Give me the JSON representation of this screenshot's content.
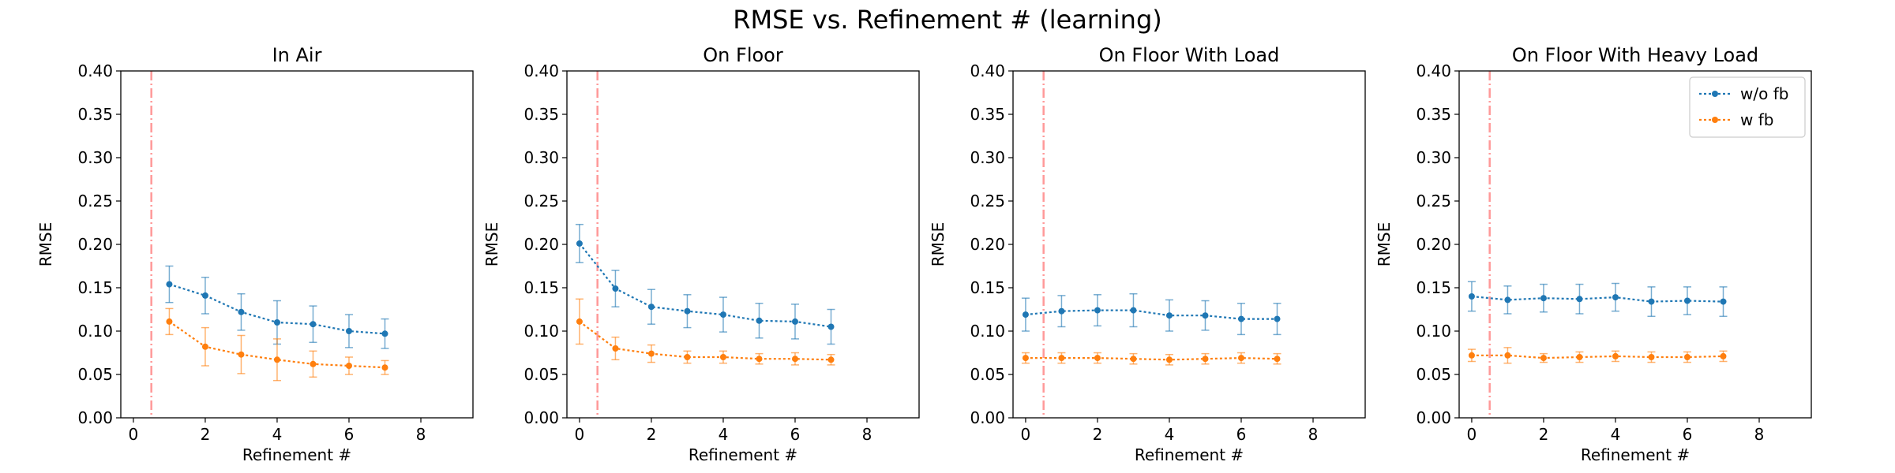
{
  "figure": {
    "title": "RMSE vs. Refinement # (learning)"
  },
  "colors": {
    "series_without_feedback": "#1f77b4",
    "series_with_feedback": "#ff7f0e",
    "marker_line": "#ff9999",
    "axes": "#000000"
  },
  "legend": {
    "placement": "upper right of last panel",
    "entries": [
      "w/o fb",
      "w fb"
    ]
  },
  "chart_data": [
    {
      "type": "line",
      "title": "In Air",
      "xlabel": "Refinement #",
      "ylabel": "RMSE",
      "xlim": [
        -0.35,
        9.45
      ],
      "ylim": [
        0,
        0.4
      ],
      "xticks": [
        "0",
        "2",
        "4",
        "6",
        "8"
      ],
      "yticks": [
        "0.00",
        "0.05",
        "0.10",
        "0.15",
        "0.20",
        "0.25",
        "0.30",
        "0.35",
        "0.40"
      ],
      "vline_x": 0.5,
      "grid": false,
      "series": [
        {
          "name": "w/o fb",
          "x": [
            1,
            2,
            3,
            4,
            5,
            6,
            7
          ],
          "y": [
            0.154,
            0.141,
            0.122,
            0.11,
            0.108,
            0.1,
            0.097
          ],
          "err": [
            0.021,
            0.021,
            0.021,
            0.025,
            0.021,
            0.019,
            0.017
          ]
        },
        {
          "name": "w fb",
          "x": [
            1,
            2,
            3,
            4,
            5,
            6,
            7
          ],
          "y": [
            0.111,
            0.082,
            0.073,
            0.067,
            0.062,
            0.06,
            0.058
          ],
          "err": [
            0.015,
            0.022,
            0.022,
            0.024,
            0.015,
            0.01,
            0.008
          ]
        }
      ]
    },
    {
      "type": "line",
      "title": "On Floor",
      "xlabel": "Refinement #",
      "ylabel": "RMSE",
      "xlim": [
        -0.35,
        9.45
      ],
      "ylim": [
        0,
        0.4
      ],
      "xticks": [
        "0",
        "2",
        "4",
        "6",
        "8"
      ],
      "yticks": [
        "0.00",
        "0.05",
        "0.10",
        "0.15",
        "0.20",
        "0.25",
        "0.30",
        "0.35",
        "0.40"
      ],
      "vline_x": 0.5,
      "grid": false,
      "series": [
        {
          "name": "w/o fb",
          "x": [
            0,
            1,
            2,
            3,
            4,
            5,
            6,
            7
          ],
          "y": [
            0.201,
            0.149,
            0.128,
            0.123,
            0.119,
            0.112,
            0.111,
            0.105
          ],
          "err": [
            0.022,
            0.021,
            0.02,
            0.019,
            0.02,
            0.02,
            0.02,
            0.02
          ]
        },
        {
          "name": "w fb",
          "x": [
            0,
            1,
            2,
            3,
            4,
            5,
            6,
            7
          ],
          "y": [
            0.111,
            0.08,
            0.074,
            0.07,
            0.07,
            0.068,
            0.068,
            0.067
          ],
          "err": [
            0.026,
            0.013,
            0.01,
            0.007,
            0.007,
            0.006,
            0.007,
            0.006
          ]
        }
      ]
    },
    {
      "type": "line",
      "title": "On Floor With Load",
      "xlabel": "Refinement #",
      "ylabel": "RMSE",
      "xlim": [
        -0.35,
        9.45
      ],
      "ylim": [
        0,
        0.4
      ],
      "xticks": [
        "0",
        "2",
        "4",
        "6",
        "8"
      ],
      "yticks": [
        "0.00",
        "0.05",
        "0.10",
        "0.15",
        "0.20",
        "0.25",
        "0.30",
        "0.35",
        "0.40"
      ],
      "vline_x": 0.5,
      "grid": false,
      "series": [
        {
          "name": "w/o fb",
          "x": [
            0,
            1,
            2,
            3,
            4,
            5,
            6,
            7
          ],
          "y": [
            0.119,
            0.123,
            0.124,
            0.124,
            0.118,
            0.118,
            0.114,
            0.114
          ],
          "err": [
            0.019,
            0.018,
            0.018,
            0.019,
            0.018,
            0.017,
            0.018,
            0.018
          ]
        },
        {
          "name": "w fb",
          "x": [
            0,
            1,
            2,
            3,
            4,
            5,
            6,
            7
          ],
          "y": [
            0.069,
            0.069,
            0.069,
            0.068,
            0.067,
            0.068,
            0.069,
            0.068
          ],
          "err": [
            0.006,
            0.006,
            0.006,
            0.006,
            0.006,
            0.006,
            0.006,
            0.006
          ]
        }
      ]
    },
    {
      "type": "line",
      "title": "On Floor With Heavy Load",
      "xlabel": "Refinement #",
      "ylabel": "RMSE",
      "xlim": [
        -0.35,
        9.45
      ],
      "ylim": [
        0,
        0.4
      ],
      "xticks": [
        "0",
        "2",
        "4",
        "6",
        "8"
      ],
      "yticks": [
        "0.00",
        "0.05",
        "0.10",
        "0.15",
        "0.20",
        "0.25",
        "0.30",
        "0.35",
        "0.40"
      ],
      "vline_x": 0.5,
      "grid": false,
      "series": [
        {
          "name": "w/o fb",
          "x": [
            0,
            1,
            2,
            3,
            4,
            5,
            6,
            7
          ],
          "y": [
            0.14,
            0.136,
            0.138,
            0.137,
            0.139,
            0.134,
            0.135,
            0.134
          ],
          "err": [
            0.017,
            0.016,
            0.016,
            0.017,
            0.016,
            0.017,
            0.016,
            0.017
          ]
        },
        {
          "name": "w fb",
          "x": [
            0,
            1,
            2,
            3,
            4,
            5,
            6,
            7
          ],
          "y": [
            0.072,
            0.072,
            0.069,
            0.07,
            0.071,
            0.07,
            0.07,
            0.071
          ],
          "err": [
            0.007,
            0.009,
            0.005,
            0.006,
            0.006,
            0.006,
            0.006,
            0.006
          ]
        }
      ]
    }
  ]
}
